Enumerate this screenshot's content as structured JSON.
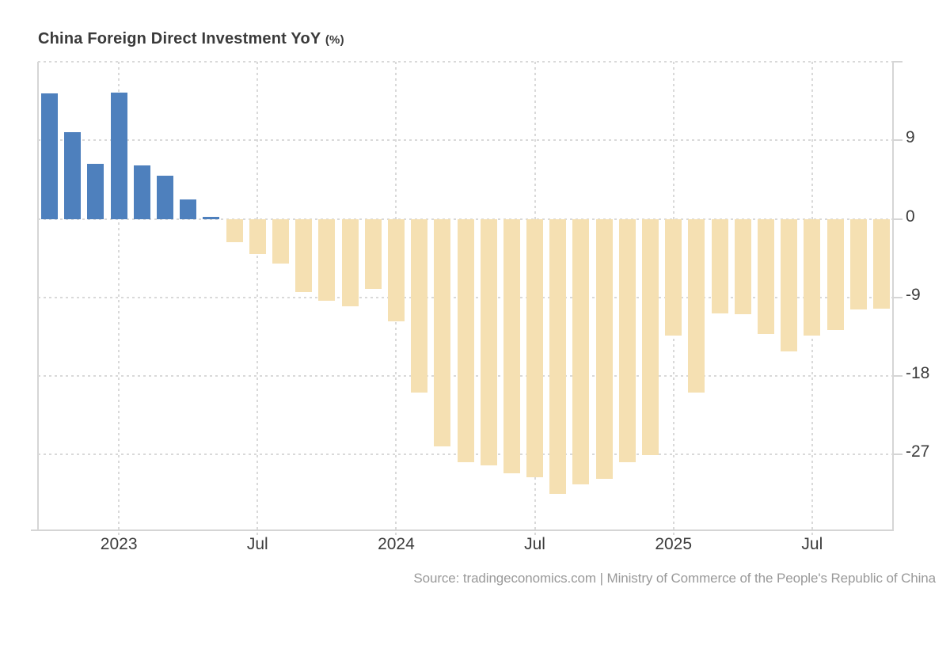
{
  "title": {
    "main": "China Foreign Direct Investment YoY",
    "unit": "(%)"
  },
  "source": "Source: tradingeconomics.com | Ministry of Commerce of the People's Republic of China",
  "colors": {
    "positive_bar": "#4e80bd",
    "negative_bar": "#f5e0b2",
    "gridline": "#d9d9d9",
    "axis_border": "#d5d5d5",
    "axis_text": "#3c3c3c",
    "title_text": "#3a3a3a",
    "source_text": "#999999",
    "background": "#ffffff"
  },
  "chart_data": {
    "type": "bar",
    "title": "China Foreign Direct Investment YoY (%)",
    "x": [
      "Oct 2022",
      "Nov 2022",
      "Dec 2022",
      "Jan 2023",
      "Feb 2023",
      "Mar 2023",
      "Apr 2023",
      "May 2023",
      "Jun 2023",
      "Jul 2023",
      "Aug 2023",
      "Sep 2023",
      "Oct 2023",
      "Nov 2023",
      "Dec 2023",
      "Jan 2024",
      "Feb 2024",
      "Mar 2024",
      "Apr 2024",
      "May 2024",
      "Jun 2024",
      "Jul 2024",
      "Aug 2024",
      "Sep 2024",
      "Oct 2024",
      "Nov 2024",
      "Dec 2024",
      "Jan 2025",
      "Feb 2025",
      "Mar 2025",
      "Apr 2025",
      "May 2025",
      "Jun 2025",
      "Jul 2025",
      "Aug 2025",
      "Sep 2025",
      "Oct 2025"
    ],
    "values": [
      14.4,
      9.9,
      6.3,
      14.5,
      6.1,
      4.9,
      2.2,
      0.1,
      -2.7,
      -4.0,
      -5.1,
      -8.4,
      -9.4,
      -10.0,
      -8.0,
      -11.7,
      -19.9,
      -26.1,
      -27.9,
      -28.2,
      -29.1,
      -29.6,
      -31.5,
      -30.4,
      -29.8,
      -27.9,
      -27.1,
      -13.4,
      -19.9,
      -10.8,
      -10.9,
      -13.2,
      -15.2,
      -13.4,
      -12.7,
      -10.4,
      -10.3
    ],
    "x_ticks": [
      {
        "index": 3,
        "label": "2023"
      },
      {
        "index": 9,
        "label": "Jul"
      },
      {
        "index": 15,
        "label": "2024"
      },
      {
        "index": 21,
        "label": "Jul"
      },
      {
        "index": 27,
        "label": "2025"
      },
      {
        "index": 33,
        "label": "Jul"
      }
    ],
    "y_ticks_labeled": [
      9,
      0,
      -9,
      -18,
      -27
    ],
    "y_gridlines": [
      18,
      9,
      0,
      -9,
      -18,
      -27
    ],
    "ylim": [
      -35.6,
      18
    ],
    "grid": true,
    "legend": false,
    "xlabel": "",
    "ylabel": ""
  }
}
